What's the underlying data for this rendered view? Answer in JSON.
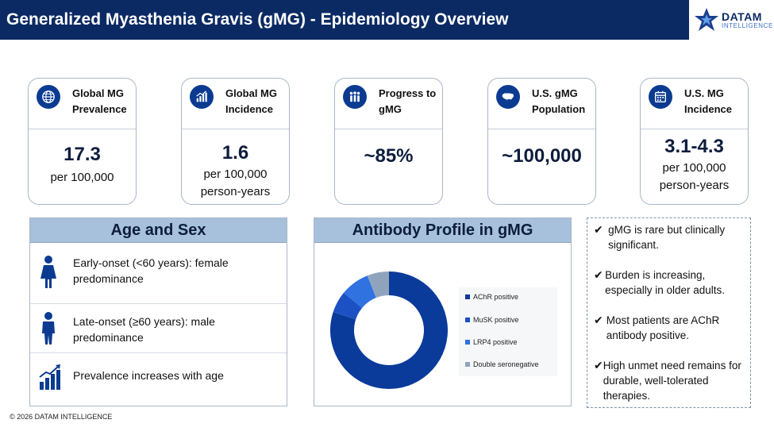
{
  "header": {
    "title": "Generalized Myasthenia Gravis (gMG) - Epidemiology Overview",
    "logo_name": "DATAM",
    "logo_sub": "INTELLIGENCE"
  },
  "cards": [
    {
      "icon": "globe-icon",
      "label": "Global MG Prevalence",
      "value": "17.3",
      "unit_lines": [
        "per 100,000"
      ]
    },
    {
      "icon": "bar-chart-icon",
      "label": "Global MG Incidence",
      "value": "1.6",
      "unit_lines": [
        "per 100,000",
        "person-years"
      ]
    },
    {
      "icon": "people-icon",
      "label": "Progress to gMG",
      "value": "~85%",
      "unit_lines": []
    },
    {
      "icon": "us-map-icon",
      "label": "U.S. gMG Population",
      "value": "~100,000",
      "unit_lines": []
    },
    {
      "icon": "calendar-icon",
      "label": "U.S. MG Incidence",
      "value": "3.1-4.3",
      "unit_lines": [
        "per 100,000",
        "person-years"
      ]
    }
  ],
  "age_sex": {
    "title": "Age and Sex",
    "rows": [
      {
        "icon": "female-icon",
        "text": "Early-onset (<60 years): female predominance"
      },
      {
        "icon": "male-icon",
        "text": "Late-onset (≥60 years): male predominance"
      },
      {
        "icon": "growth-chart-icon",
        "text": "Prevalence increases with age"
      }
    ]
  },
  "antibody": {
    "title": "Antibody Profile in gMG"
  },
  "chart_data": {
    "type": "pie",
    "variant": "donut",
    "categories": [
      "AChR positive",
      "MuSK positive",
      "LRP4 positive",
      "Double seronegative"
    ],
    "values": [
      80,
      6,
      8,
      6
    ],
    "colors": [
      "#0a3a9a",
      "#1b51c2",
      "#2f72e0",
      "#8fa4bc"
    ],
    "title": "",
    "legend": "right"
  },
  "takeaways": [
    "gMG is rare but clinically significant.",
    "Burden is increasing, especially in older adults.",
    "Most patients are AChR antibody positive.",
    "High unmet need remains for durable, well-tolerated therapies."
  ],
  "takeaway_check": "✔",
  "footer": "© 2026 DATAM INTELLIGENCE"
}
